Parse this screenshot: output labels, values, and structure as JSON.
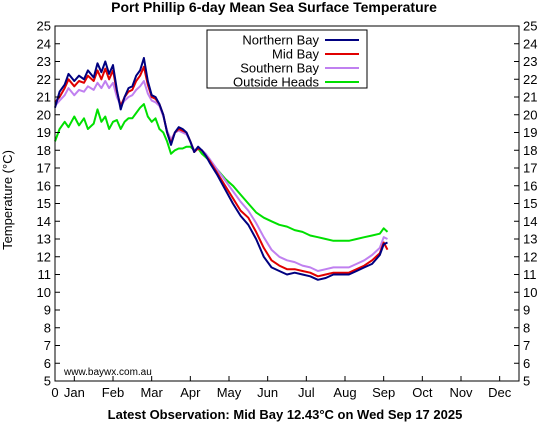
{
  "chart_data": {
    "type": "line",
    "title": "Port Phillip 6-day Mean Sea Surface Temperature",
    "ylabel": "Temperature (°C)",
    "xlabel": "",
    "footer": "Latest Observation: Mid Bay 12.43°C on Wed Sep 17 2025",
    "credit": "www.baywx.com.au",
    "xlim": [
      0,
      12
    ],
    "ylim": [
      5,
      25
    ],
    "x_tick_labels": [
      {
        "x": 0,
        "label": "0"
      },
      {
        "x": 0.5,
        "label": "Jan"
      },
      {
        "x": 1.5,
        "label": "Feb"
      },
      {
        "x": 2.5,
        "label": "Mar"
      },
      {
        "x": 3.5,
        "label": "Apr"
      },
      {
        "x": 4.5,
        "label": "May"
      },
      {
        "x": 5.5,
        "label": "Jun"
      },
      {
        "x": 6.5,
        "label": "Jul"
      },
      {
        "x": 7.5,
        "label": "Aug"
      },
      {
        "x": 8.5,
        "label": "Sep"
      },
      {
        "x": 9.5,
        "label": "Oct"
      },
      {
        "x": 10.5,
        "label": "Nov"
      },
      {
        "x": 11.5,
        "label": "Dec"
      }
    ],
    "y_ticks": [
      5,
      6,
      7,
      8,
      9,
      10,
      11,
      12,
      13,
      14,
      15,
      16,
      17,
      18,
      19,
      20,
      21,
      22,
      23,
      24,
      25
    ],
    "legend_position": "top-center",
    "series": [
      {
        "name": "Northern Bay",
        "color": "#000080",
        "x": [
          0.0,
          0.12,
          0.25,
          0.35,
          0.5,
          0.62,
          0.75,
          0.85,
          1.0,
          1.1,
          1.2,
          1.3,
          1.4,
          1.5,
          1.6,
          1.7,
          1.8,
          1.9,
          2.0,
          2.1,
          2.2,
          2.3,
          2.4,
          2.5,
          2.6,
          2.7,
          2.8,
          2.9,
          3.0,
          3.1,
          3.2,
          3.3,
          3.4,
          3.5,
          3.6,
          3.7,
          3.8,
          3.9,
          4.0,
          4.2,
          4.4,
          4.6,
          4.8,
          5.0,
          5.2,
          5.4,
          5.6,
          5.8,
          6.0,
          6.2,
          6.4,
          6.6,
          6.8,
          7.0,
          7.2,
          7.4,
          7.6,
          7.8,
          8.0,
          8.2,
          8.4,
          8.5,
          8.6
        ],
        "y": [
          20.4,
          21.3,
          21.7,
          22.3,
          21.9,
          22.2,
          22.0,
          22.5,
          22.1,
          22.9,
          22.4,
          23.0,
          22.3,
          22.8,
          21.4,
          20.3,
          21.0,
          21.5,
          21.6,
          22.2,
          22.5,
          23.2,
          21.9,
          21.1,
          21.0,
          20.6,
          20.0,
          19.0,
          18.3,
          19.0,
          19.3,
          19.2,
          19.0,
          18.5,
          17.9,
          18.2,
          18.0,
          17.7,
          17.3,
          16.6,
          15.8,
          15.0,
          14.3,
          13.8,
          13.0,
          12.0,
          11.4,
          11.2,
          11.0,
          11.1,
          11.0,
          10.9,
          10.7,
          10.8,
          11.0,
          11.0,
          11.0,
          11.2,
          11.4,
          11.6,
          12.1,
          12.7,
          12.8
        ]
      },
      {
        "name": "Mid Bay",
        "color": "#e00000",
        "x": [
          0.0,
          0.12,
          0.25,
          0.35,
          0.5,
          0.62,
          0.75,
          0.85,
          1.0,
          1.1,
          1.2,
          1.3,
          1.4,
          1.5,
          1.6,
          1.7,
          1.8,
          1.9,
          2.0,
          2.1,
          2.2,
          2.3,
          2.4,
          2.5,
          2.6,
          2.7,
          2.8,
          2.9,
          3.0,
          3.1,
          3.2,
          3.3,
          3.4,
          3.5,
          3.6,
          3.7,
          3.8,
          3.9,
          4.0,
          4.2,
          4.4,
          4.6,
          4.8,
          5.0,
          5.2,
          5.4,
          5.6,
          5.8,
          6.0,
          6.2,
          6.4,
          6.6,
          6.8,
          7.0,
          7.2,
          7.4,
          7.6,
          7.8,
          8.0,
          8.2,
          8.4,
          8.5,
          8.6
        ],
        "y": [
          20.7,
          21.0,
          21.5,
          22.0,
          21.6,
          21.9,
          21.8,
          22.2,
          21.9,
          22.5,
          22.0,
          22.6,
          22.0,
          22.5,
          21.3,
          20.5,
          21.0,
          21.3,
          21.4,
          21.9,
          22.2,
          22.7,
          21.7,
          21.0,
          20.9,
          20.6,
          20.0,
          19.0,
          18.4,
          19.0,
          19.2,
          19.1,
          19.0,
          18.5,
          17.9,
          18.1,
          18.0,
          17.7,
          17.4,
          16.7,
          16.0,
          15.3,
          14.6,
          14.2,
          13.4,
          12.5,
          11.8,
          11.5,
          11.3,
          11.3,
          11.2,
          11.1,
          10.9,
          11.0,
          11.1,
          11.1,
          11.1,
          11.3,
          11.5,
          11.8,
          12.2,
          12.8,
          12.4
        ]
      },
      {
        "name": "Southern Bay",
        "color": "#c080f0",
        "x": [
          0.0,
          0.12,
          0.25,
          0.35,
          0.5,
          0.62,
          0.75,
          0.85,
          1.0,
          1.1,
          1.2,
          1.3,
          1.4,
          1.5,
          1.6,
          1.7,
          1.8,
          1.9,
          2.0,
          2.1,
          2.2,
          2.3,
          2.4,
          2.5,
          2.6,
          2.7,
          2.8,
          2.9,
          3.0,
          3.1,
          3.2,
          3.3,
          3.4,
          3.5,
          3.6,
          3.7,
          3.8,
          3.9,
          4.0,
          4.2,
          4.4,
          4.6,
          4.8,
          5.0,
          5.2,
          5.4,
          5.6,
          5.8,
          6.0,
          6.2,
          6.4,
          6.6,
          6.8,
          7.0,
          7.2,
          7.4,
          7.6,
          7.8,
          8.0,
          8.2,
          8.4,
          8.5,
          8.6
        ],
        "y": [
          20.5,
          20.8,
          21.1,
          21.5,
          21.1,
          21.4,
          21.3,
          21.6,
          21.4,
          21.8,
          21.5,
          21.9,
          21.5,
          21.8,
          21.0,
          20.5,
          20.8,
          21.0,
          21.1,
          21.4,
          21.6,
          21.9,
          21.2,
          20.8,
          20.7,
          20.5,
          19.9,
          19.1,
          18.6,
          19.0,
          19.1,
          19.0,
          18.9,
          18.5,
          18.0,
          18.1,
          18.0,
          17.8,
          17.5,
          16.9,
          16.3,
          15.7,
          15.1,
          14.6,
          13.9,
          13.1,
          12.4,
          12.0,
          11.8,
          11.7,
          11.5,
          11.4,
          11.2,
          11.3,
          11.4,
          11.4,
          11.4,
          11.6,
          11.8,
          12.1,
          12.5,
          13.1,
          13.0
        ]
      },
      {
        "name": "Outside Heads",
        "color": "#00e000",
        "x": [
          0.0,
          0.12,
          0.25,
          0.35,
          0.5,
          0.62,
          0.75,
          0.85,
          1.0,
          1.1,
          1.2,
          1.3,
          1.4,
          1.5,
          1.6,
          1.7,
          1.8,
          1.9,
          2.0,
          2.1,
          2.2,
          2.3,
          2.4,
          2.5,
          2.6,
          2.7,
          2.8,
          2.9,
          3.0,
          3.1,
          3.2,
          3.3,
          3.4,
          3.5,
          3.6,
          3.7,
          3.8,
          3.9,
          4.0,
          4.2,
          4.4,
          4.6,
          4.8,
          5.0,
          5.2,
          5.4,
          5.6,
          5.8,
          6.0,
          6.2,
          6.4,
          6.6,
          6.8,
          7.0,
          7.2,
          7.4,
          7.6,
          7.8,
          8.0,
          8.2,
          8.4,
          8.5,
          8.6
        ],
        "y": [
          18.5,
          19.2,
          19.6,
          19.3,
          19.9,
          19.4,
          19.8,
          19.2,
          19.5,
          20.3,
          19.6,
          19.9,
          19.2,
          19.6,
          19.7,
          19.2,
          19.6,
          19.8,
          19.8,
          20.1,
          20.4,
          20.6,
          19.9,
          19.6,
          19.8,
          19.2,
          19.0,
          18.5,
          17.8,
          18.0,
          18.1,
          18.1,
          18.2,
          18.2,
          18.0,
          18.1,
          17.8,
          17.6,
          17.4,
          16.9,
          16.4,
          16.0,
          15.5,
          15.0,
          14.5,
          14.2,
          14.0,
          13.8,
          13.7,
          13.5,
          13.4,
          13.2,
          13.1,
          13.0,
          12.9,
          12.9,
          12.9,
          13.0,
          13.1,
          13.2,
          13.3,
          13.6,
          13.4
        ]
      }
    ]
  }
}
